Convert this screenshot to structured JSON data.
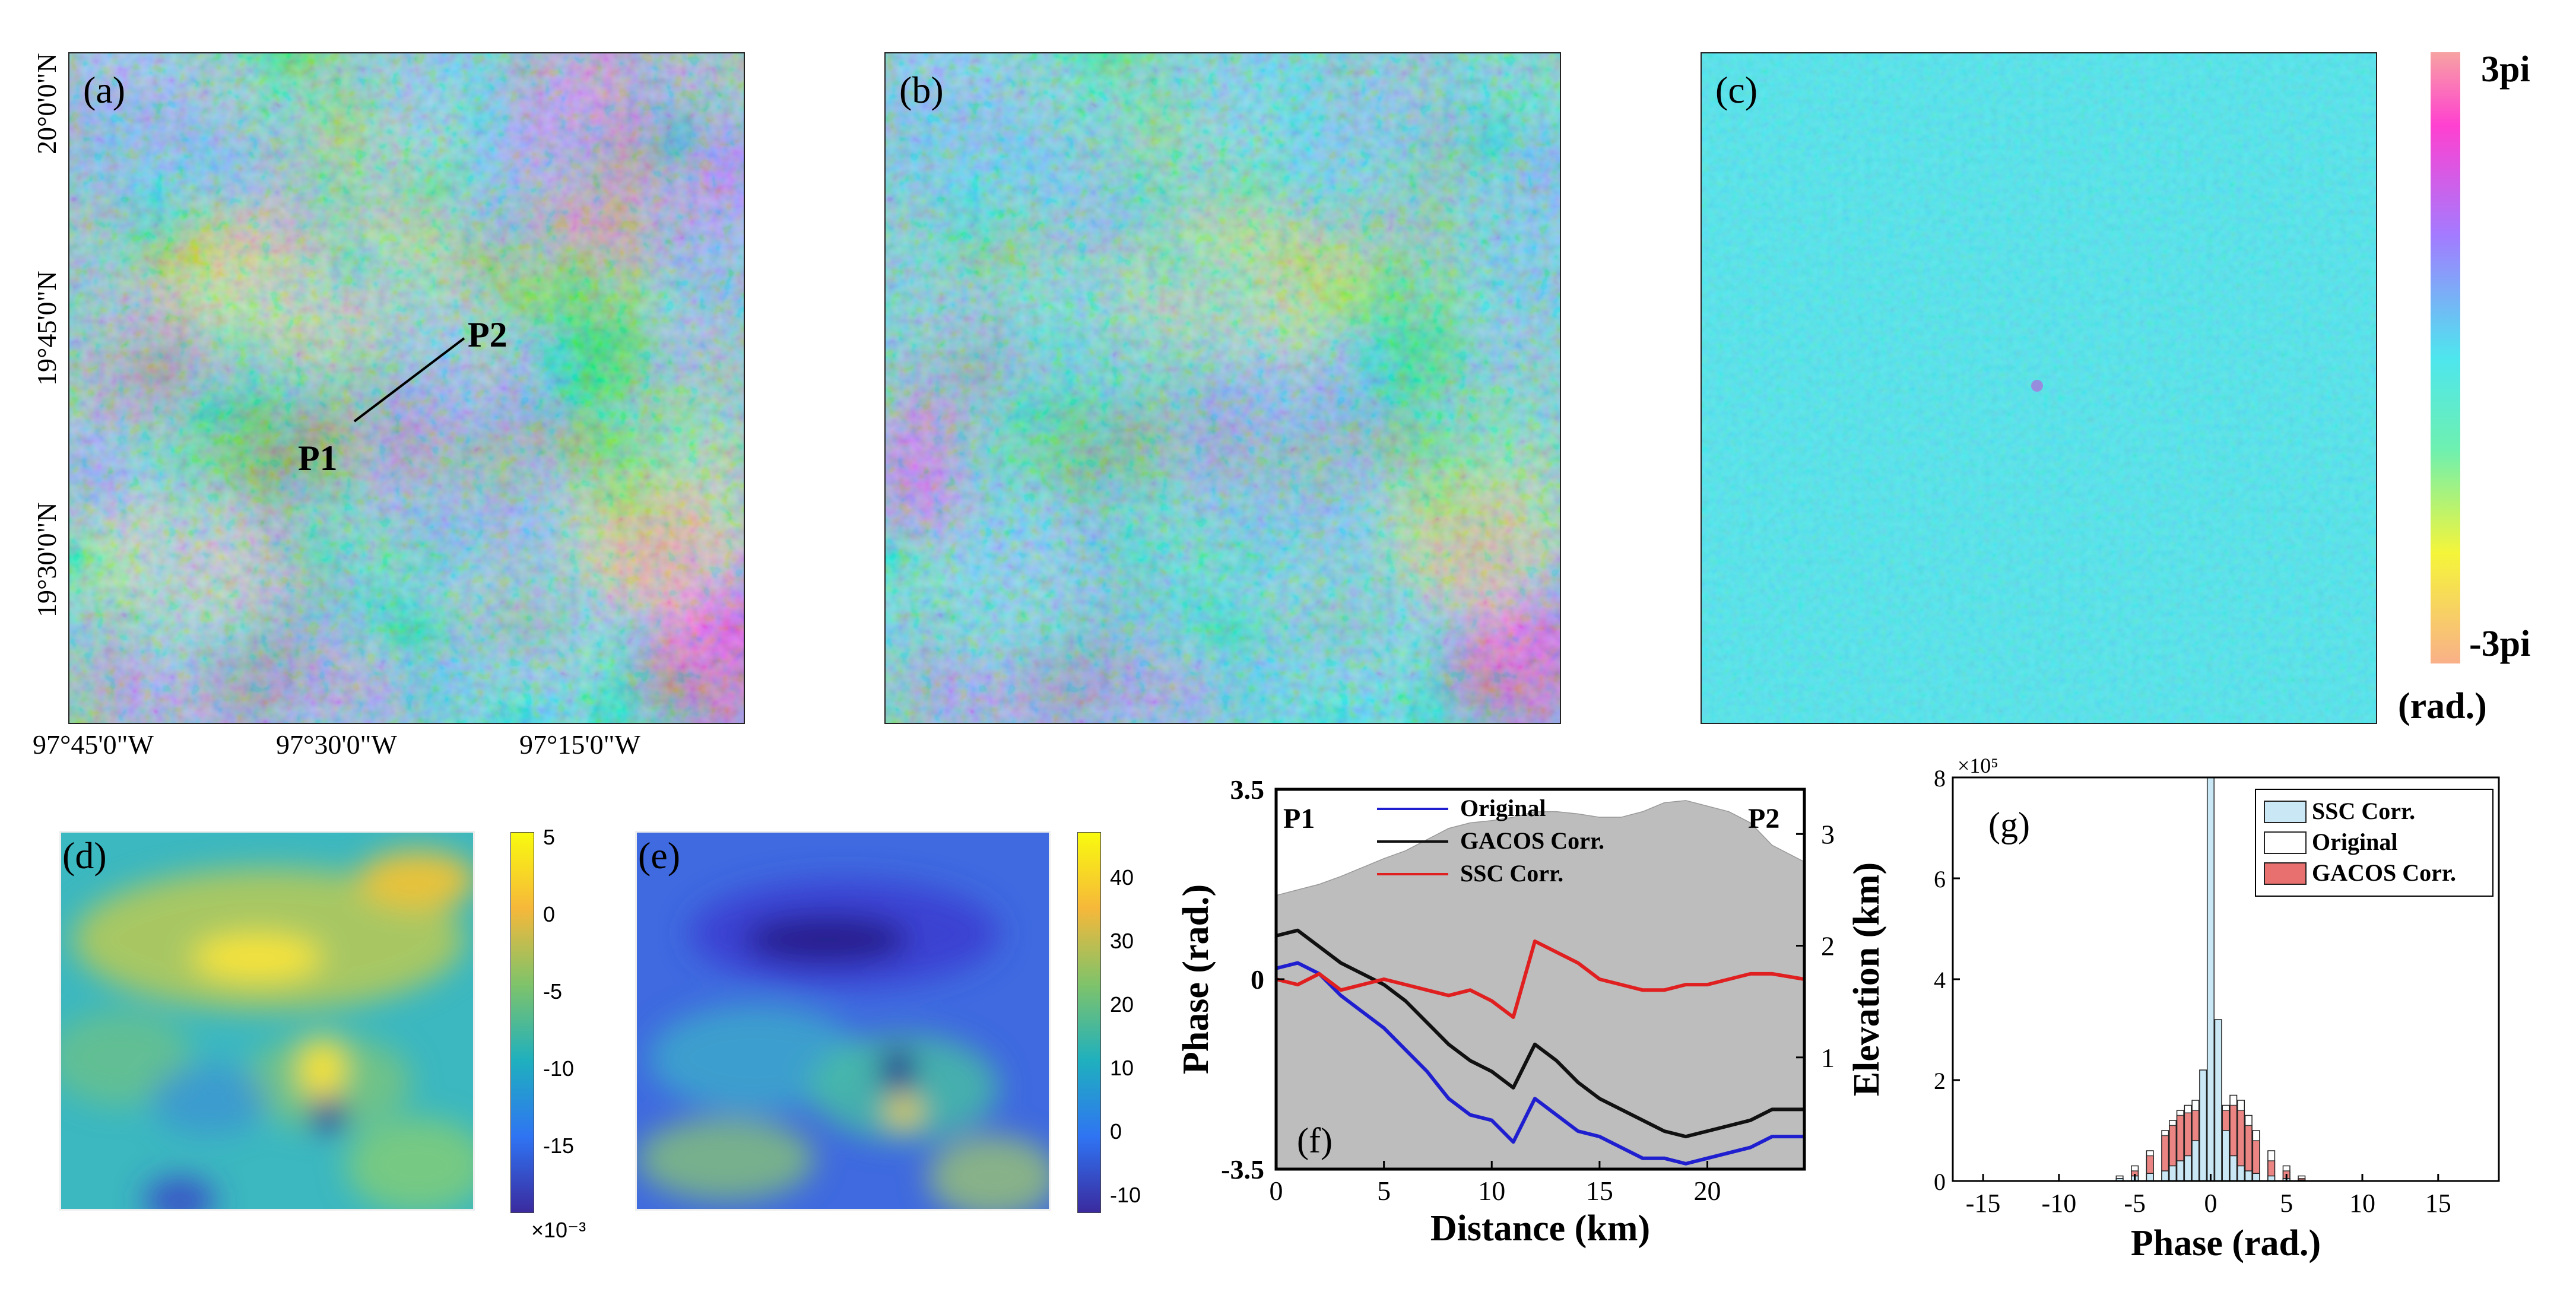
{
  "panels": {
    "a": {
      "label": "(a)",
      "p1": "P1",
      "p2": "P2"
    },
    "b": {
      "label": "(b)"
    },
    "c": {
      "label": "(c)"
    },
    "d": {
      "label": "(d)"
    },
    "e": {
      "label": "(e)"
    },
    "f": {
      "label": "(f)"
    },
    "g": {
      "label": "(g)"
    }
  },
  "map_axes": {
    "lat_ticks": [
      "20°0'0\"N",
      "19°45'0\"N",
      "19°30'0\"N"
    ],
    "lon_ticks": [
      "97°45'0\"W",
      "97°30'0\"W",
      "97°15'0\"W"
    ]
  },
  "phase_colorbar": {
    "top": "3pi",
    "bottom": "-3pi",
    "unit": "(rad.)"
  },
  "colorbar_d": {
    "ticks": [
      "5",
      "0",
      "-5",
      "-10",
      "-15"
    ],
    "exponent": "×10⁻³"
  },
  "colorbar_e": {
    "ticks": [
      "40",
      "30",
      "20",
      "10",
      "0",
      "-10"
    ]
  },
  "colors": {
    "original": "#1f1fd0",
    "gacos": "#111111",
    "ssc": "#e02020",
    "terrain": "#bdbdbd",
    "hist_ssc": "#c9e7f5",
    "hist_gacos": "#e8706e"
  },
  "chart_data": [
    {
      "type": "line",
      "panel": "f",
      "xlabel": "Distance (km)",
      "ylabel": "Phase (rad.)",
      "y2label": "Elevation (km)",
      "xlim": [
        0,
        24.5
      ],
      "ylim": [
        -3.5,
        3.5
      ],
      "y2lim": [
        0,
        3.4
      ],
      "xticks": [
        0,
        5,
        10,
        15,
        20
      ],
      "yticks": [
        -3.5,
        0,
        3.5
      ],
      "y2ticks": [
        1,
        2,
        3
      ],
      "start_label": "P1",
      "end_label": "P2",
      "x": [
        0,
        1,
        2,
        3,
        4,
        5,
        6,
        7,
        8,
        9,
        10,
        11,
        12,
        13,
        14,
        15,
        16,
        17,
        18,
        19,
        20,
        21,
        22,
        23,
        24.5
      ],
      "series": [
        {
          "name": "Original",
          "color": "#1f1fd0",
          "values": [
            0.2,
            0.3,
            0.1,
            -0.3,
            -0.6,
            -0.9,
            -1.3,
            -1.7,
            -2.2,
            -2.5,
            -2.6,
            -3.0,
            -2.2,
            -2.5,
            -2.8,
            -2.9,
            -3.1,
            -3.3,
            -3.3,
            -3.4,
            -3.3,
            -3.2,
            -3.1,
            -2.9,
            -2.9
          ]
        },
        {
          "name": "GACOS Corr.",
          "color": "#111111",
          "values": [
            0.8,
            0.9,
            0.6,
            0.3,
            0.1,
            -0.1,
            -0.4,
            -0.8,
            -1.2,
            -1.5,
            -1.7,
            -2.0,
            -1.2,
            -1.5,
            -1.9,
            -2.2,
            -2.4,
            -2.6,
            -2.8,
            -2.9,
            -2.8,
            -2.7,
            -2.6,
            -2.4,
            -2.4
          ]
        },
        {
          "name": "SSC Corr.",
          "color": "#e02020",
          "values": [
            0.0,
            -0.1,
            0.1,
            -0.2,
            -0.1,
            0.0,
            -0.1,
            -0.2,
            -0.3,
            -0.2,
            -0.4,
            -0.7,
            0.7,
            0.5,
            0.3,
            0.0,
            -0.1,
            -0.2,
            -0.2,
            -0.1,
            -0.1,
            0.0,
            0.1,
            0.1,
            0.0
          ]
        }
      ],
      "elevation": {
        "name": "Elevation",
        "values": [
          2.45,
          2.5,
          2.55,
          2.62,
          2.7,
          2.78,
          2.85,
          2.95,
          3.05,
          3.1,
          3.12,
          3.15,
          3.2,
          3.2,
          3.18,
          3.15,
          3.15,
          3.2,
          3.28,
          3.3,
          3.25,
          3.2,
          3.1,
          2.9,
          2.75
        ]
      }
    },
    {
      "type": "bar",
      "panel": "g",
      "xlabel": "Phase (rad.)",
      "ylabel": "",
      "y_exponent": "×10⁵",
      "xlim": [
        -17,
        19
      ],
      "ylim": [
        0,
        8
      ],
      "xticks": [
        -15,
        -10,
        -5,
        0,
        5,
        10,
        15
      ],
      "yticks": [
        0,
        2,
        4,
        6,
        8
      ],
      "bin_centers": [
        -6,
        -5,
        -4,
        -3,
        -2.5,
        -2,
        -1.5,
        -1,
        -0.5,
        0,
        0.5,
        1,
        1.5,
        2,
        2.5,
        3,
        4,
        5,
        6
      ],
      "series": [
        {
          "name": "SSC Corr.",
          "color": "#c9e7f5",
          "values": [
            0.05,
            0.1,
            0.15,
            0.2,
            0.3,
            0.4,
            0.5,
            0.8,
            2.2,
            8.0,
            3.2,
            1.0,
            0.5,
            0.3,
            0.2,
            0.15,
            0.1,
            0.05,
            0.02
          ]
        },
        {
          "name": "Original",
          "color": "#ffffff",
          "values": [
            0.1,
            0.3,
            0.6,
            1.0,
            1.2,
            1.4,
            1.5,
            1.6,
            1.5,
            1.2,
            1.3,
            1.5,
            1.7,
            1.6,
            1.3,
            1.0,
            0.6,
            0.3,
            0.1
          ]
        },
        {
          "name": "GACOS Corr.",
          "color": "#e8706e",
          "values": [
            0.05,
            0.2,
            0.5,
            0.9,
            1.1,
            1.3,
            1.35,
            1.4,
            1.3,
            1.0,
            1.2,
            1.4,
            1.5,
            1.4,
            1.1,
            0.8,
            0.4,
            0.2,
            0.05
          ]
        }
      ]
    }
  ]
}
